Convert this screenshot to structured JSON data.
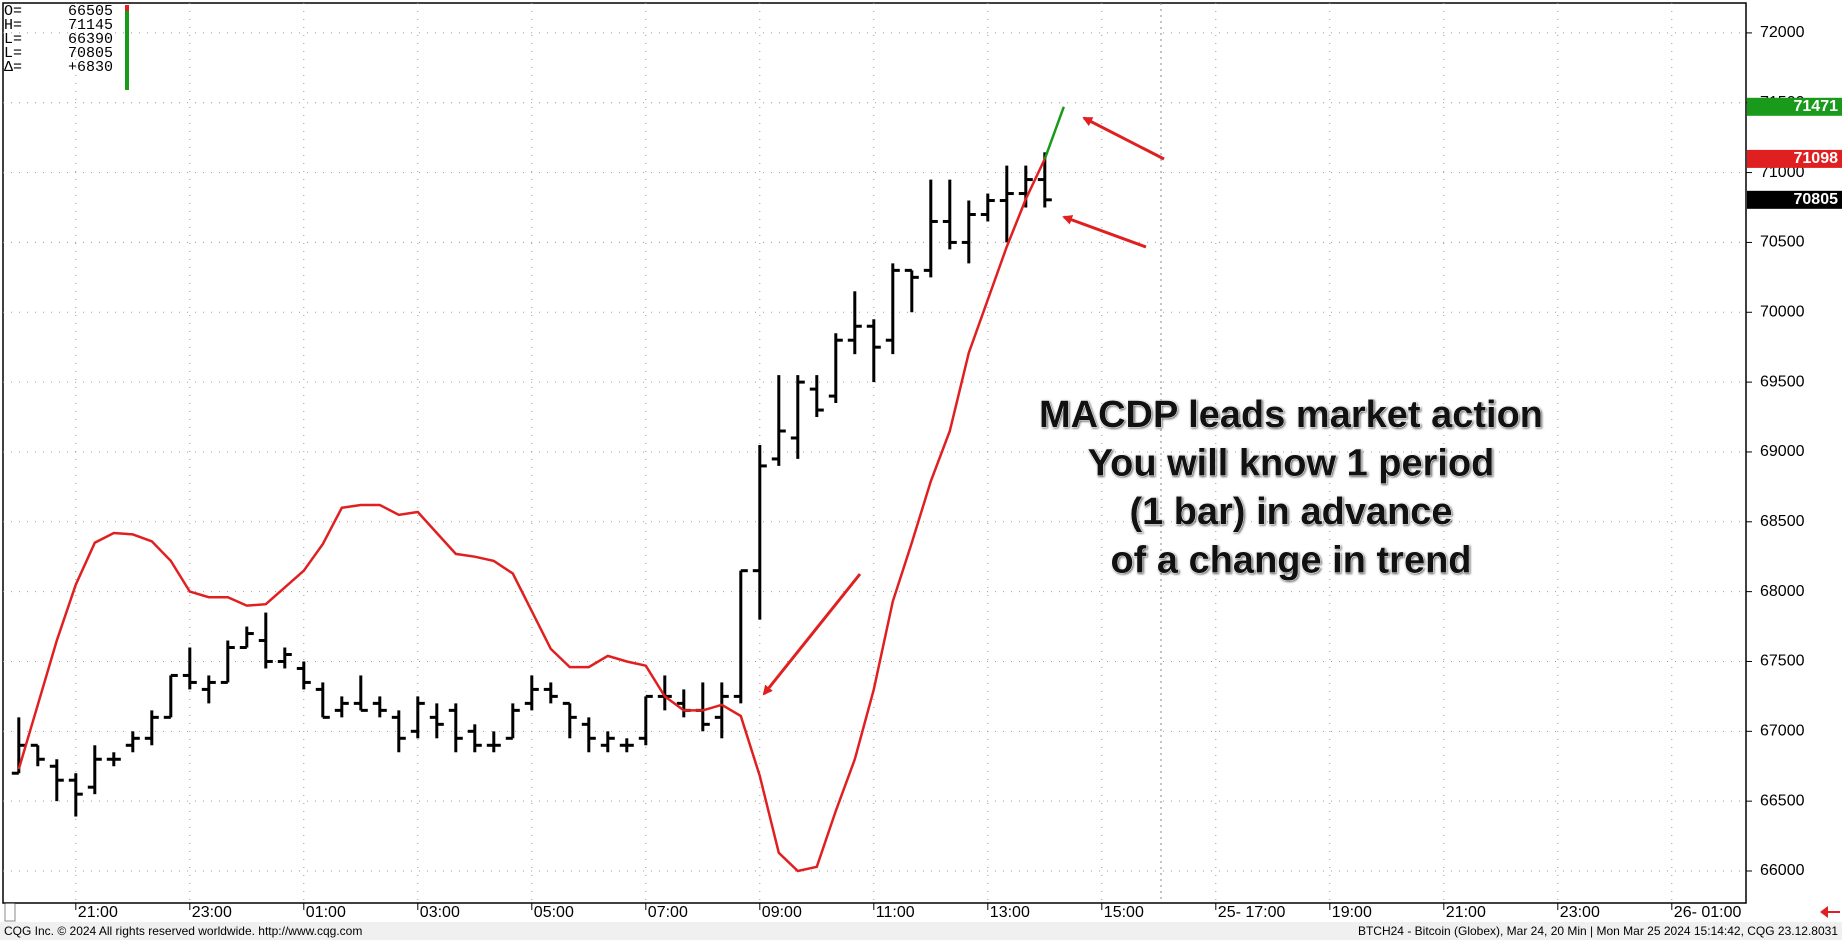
{
  "chart_data": {
    "type": "ohlc",
    "color": "#000000",
    "categories": [
      null,
      null,
      null,
      "21:00",
      null,
      null,
      null,
      null,
      null,
      "23:00",
      null,
      null,
      null,
      null,
      null,
      "01:00",
      null,
      null,
      null,
      null,
      null,
      "03:00",
      null,
      null,
      null,
      null,
      null,
      "05:00",
      null,
      null,
      null,
      null,
      null,
      "07:00",
      null,
      null,
      null,
      null,
      null,
      "09:00",
      null,
      null,
      null,
      null,
      null,
      "11:00",
      null,
      null,
      null,
      null,
      null,
      "13:00",
      null,
      null,
      null,
      null,
      null,
      "15:00",
      null,
      null,
      null,
      null,
      null,
      "25- 17:00",
      null,
      null,
      null,
      null,
      null,
      "19:00",
      null,
      null,
      null,
      null,
      null,
      "21:00",
      null,
      null,
      null,
      null,
      null,
      "23:00",
      null,
      null,
      null,
      null,
      null,
      "26- 01:00",
      null,
      null,
      null
    ],
    "open": [
      66700,
      66900,
      66750,
      66650,
      66600,
      66800,
      66900,
      66950,
      67100,
      67400,
      67300,
      67350,
      67600,
      67650,
      67500,
      67450,
      67300,
      67150,
      67200,
      67200,
      67100,
      67000,
      67100,
      67150,
      67000,
      66900,
      66950,
      67200,
      67300,
      67200,
      67050,
      66900,
      66900,
      66950,
      67250,
      67200,
      67150,
      67100,
      67250,
      68150,
      68950,
      69100,
      69450,
      69400,
      69800,
      69900,
      69800,
      70300,
      70300,
      70650,
      70500,
      70700,
      70800,
      70850,
      70950,
      null,
      null,
      null,
      null,
      null,
      null,
      null,
      null,
      null,
      null,
      null,
      null,
      null,
      null,
      null,
      null,
      null,
      null,
      null,
      null,
      null,
      null,
      null,
      null,
      null,
      null,
      null,
      null,
      null,
      null,
      null,
      null,
      null,
      null,
      null,
      null
    ],
    "high": [
      67100,
      66900,
      66800,
      66700,
      66900,
      66850,
      67000,
      67150,
      67400,
      67600,
      67400,
      67650,
      67750,
      67850,
      67600,
      67500,
      67350,
      67250,
      67400,
      67250,
      67150,
      67250,
      67200,
      67200,
      67050,
      67000,
      67200,
      67400,
      67350,
      67200,
      67100,
      67000,
      66950,
      67250,
      67400,
      67300,
      67350,
      67350,
      68150,
      69050,
      69550,
      69550,
      69550,
      69850,
      70150,
      69950,
      70350,
      70300,
      70950,
      70950,
      70800,
      70850,
      71050,
      71050,
      71145,
      null,
      null,
      null,
      null,
      null,
      null,
      null,
      null,
      null,
      null,
      null,
      null,
      null,
      null,
      null,
      null,
      null,
      null,
      null,
      null,
      null,
      null,
      null,
      null,
      null,
      null,
      null,
      null,
      null,
      null,
      null,
      null,
      null,
      null,
      null,
      null
    ],
    "low": [
      66700,
      66750,
      66500,
      66390,
      66550,
      66750,
      66850,
      66900,
      67100,
      67300,
      67200,
      67350,
      67600,
      67450,
      67450,
      67300,
      67100,
      67100,
      67150,
      67100,
      66850,
      66950,
      66950,
      66850,
      66850,
      66850,
      66950,
      67150,
      67200,
      66950,
      66850,
      66850,
      66850,
      66900,
      67150,
      67100,
      67000,
      66950,
      67200,
      67800,
      68900,
      68950,
      69250,
      69350,
      69700,
      69500,
      69700,
      70000,
      70250,
      70450,
      70350,
      70650,
      70500,
      70750,
      70750,
      null,
      null,
      null,
      null,
      null,
      null,
      null,
      null,
      null,
      null,
      null,
      null,
      null,
      null,
      null,
      null,
      null,
      null,
      null,
      null,
      null,
      null,
      null,
      null,
      null,
      null,
      null,
      null,
      null,
      null,
      null,
      null,
      null,
      null,
      null,
      null
    ],
    "close": [
      66900,
      66800,
      66650,
      66550,
      66800,
      66800,
      66950,
      67100,
      67400,
      67350,
      67350,
      67600,
      67700,
      67500,
      67550,
      67350,
      67100,
      67200,
      67150,
      67150,
      66950,
      67200,
      67050,
      66950,
      66900,
      66900,
      67150,
      67300,
      67250,
      67100,
      66950,
      66950,
      66900,
      67250,
      67250,
      67150,
      67050,
      67250,
      68150,
      68900,
      69150,
      69500,
      69300,
      69800,
      69900,
      69750,
      70300,
      70250,
      70650,
      70500,
      70700,
      70800,
      70850,
      70950,
      70805,
      null,
      null,
      null,
      null,
      null,
      null,
      null,
      null,
      null,
      null,
      null,
      null,
      null,
      null,
      null,
      null,
      null,
      null,
      null,
      null,
      null,
      null,
      null,
      null,
      null,
      null,
      null,
      null,
      null,
      null,
      null,
      null,
      null,
      null,
      null,
      null
    ],
    "lines": [
      {
        "color": "#e02020",
        "values": [
          66730,
          67190,
          67650,
          68050,
          68350,
          68420,
          68410,
          68360,
          68220,
          68000,
          67960,
          67960,
          67900,
          67910,
          68030,
          68150,
          68340,
          68600,
          68620,
          68620,
          68550,
          68570,
          68420,
          68270,
          68250,
          68220,
          68130,
          67860,
          67590,
          67460,
          67460,
          67540,
          67500,
          67470,
          67250,
          67150,
          67150,
          67190,
          67110,
          66680,
          66130,
          66000,
          66030,
          66430,
          66800,
          67300,
          67930,
          68350,
          68790,
          69150,
          69710,
          70090,
          70470,
          70810,
          71098,
          null,
          null,
          null,
          null,
          null,
          null,
          null,
          null,
          null,
          null,
          null,
          null,
          null,
          null,
          null,
          null,
          null,
          null,
          null,
          null,
          null,
          null,
          null,
          null,
          null,
          null,
          null,
          null,
          null,
          null,
          null,
          null,
          null,
          null,
          null,
          null
        ]
      },
      {
        "color": "#1a9a1a",
        "values": [
          null,
          null,
          null,
          null,
          null,
          null,
          null,
          null,
          null,
          null,
          null,
          null,
          null,
          null,
          null,
          null,
          null,
          null,
          null,
          null,
          null,
          null,
          null,
          null,
          null,
          null,
          null,
          null,
          null,
          null,
          null,
          null,
          null,
          null,
          null,
          null,
          null,
          null,
          null,
          null,
          null,
          null,
          null,
          null,
          null,
          null,
          null,
          null,
          null,
          null,
          null,
          null,
          null,
          null,
          null,
          71471,
          null,
          null,
          null,
          null,
          null,
          null,
          null,
          null,
          null,
          null,
          null,
          null,
          null,
          null,
          null,
          null,
          null,
          null,
          null,
          null,
          null,
          null,
          null,
          null,
          null,
          null,
          null,
          null,
          null,
          null,
          null,
          null,
          null,
          null,
          null
        ]
      }
    ],
    "ylim": [
      66000,
      72000
    ],
    "yticks": [
      66000,
      66500,
      67000,
      67500,
      68000,
      68500,
      69000,
      69500,
      70000,
      70500,
      71000,
      71500,
      72000
    ],
    "grid": true,
    "info_box": [
      {
        "label": "O=",
        "value": 66505
      },
      {
        "label": "H=",
        "value": 71145
      },
      {
        "label": "L=",
        "value": 66390
      },
      {
        "label": "L=",
        "value": 70805
      },
      {
        "label": "Δ=",
        "value": "+6830"
      }
    ],
    "annotation": [
      "MACDP leads market action",
      "You will know 1 period",
      "(1 bar) in advance",
      "of a change in trend"
    ],
    "footer_left": "CQG Inc. © 2024 All rights reserved worldwide. http://www.cqg.com",
    "footer_right": "BTCH24 - Bitcoin (Globex), Mar 24, 20 Min | Mon Mar 25 2024 15:14:42, CQG 23.12.8031"
  }
}
